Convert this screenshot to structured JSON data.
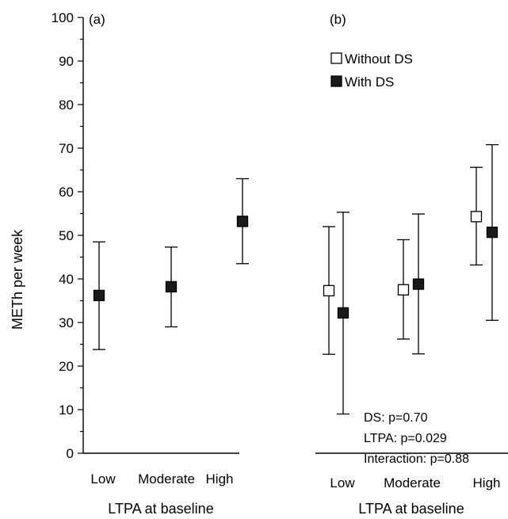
{
  "chart_data": [
    {
      "type": "scatter",
      "panel_label": "(a)",
      "ylabel": "METh per week",
      "xlabel": "LTPA at baseline",
      "ylim": [
        0,
        100
      ],
      "y_ticks": [
        0,
        10,
        20,
        30,
        40,
        50,
        60,
        70,
        80,
        90,
        100
      ],
      "categories": [
        "Low",
        "Moderate",
        "High"
      ],
      "series": [
        {
          "marker": "filled-square",
          "color": "#1a1a1a",
          "values": [
            36.2,
            38.2,
            53.2
          ],
          "lower": [
            23.8,
            29.0,
            43.5
          ],
          "upper": [
            48.5,
            47.3,
            63.0
          ]
        }
      ]
    },
    {
      "type": "scatter",
      "panel_label": "(b)",
      "xlabel": "LTPA at baseline",
      "ylim": [
        0,
        100
      ],
      "categories": [
        "Low",
        "Moderate",
        "High"
      ],
      "legend_position": "top-left",
      "series": [
        {
          "name": "Without DS",
          "marker": "open-square",
          "color": "#ffffff",
          "values": [
            37.3,
            37.5,
            54.3
          ],
          "lower": [
            22.7,
            26.2,
            43.2
          ],
          "upper": [
            52.0,
            49.0,
            65.6
          ]
        },
        {
          "name": "With DS",
          "marker": "filled-square",
          "color": "#1a1a1a",
          "values": [
            32.2,
            38.8,
            50.7
          ],
          "lower": [
            9.0,
            22.8,
            30.5
          ],
          "upper": [
            55.3,
            54.9,
            70.8
          ]
        }
      ],
      "annotations": [
        "DS: p=0.70",
        "LTPA: p=0.029",
        "Interaction: p=0.88"
      ]
    }
  ]
}
